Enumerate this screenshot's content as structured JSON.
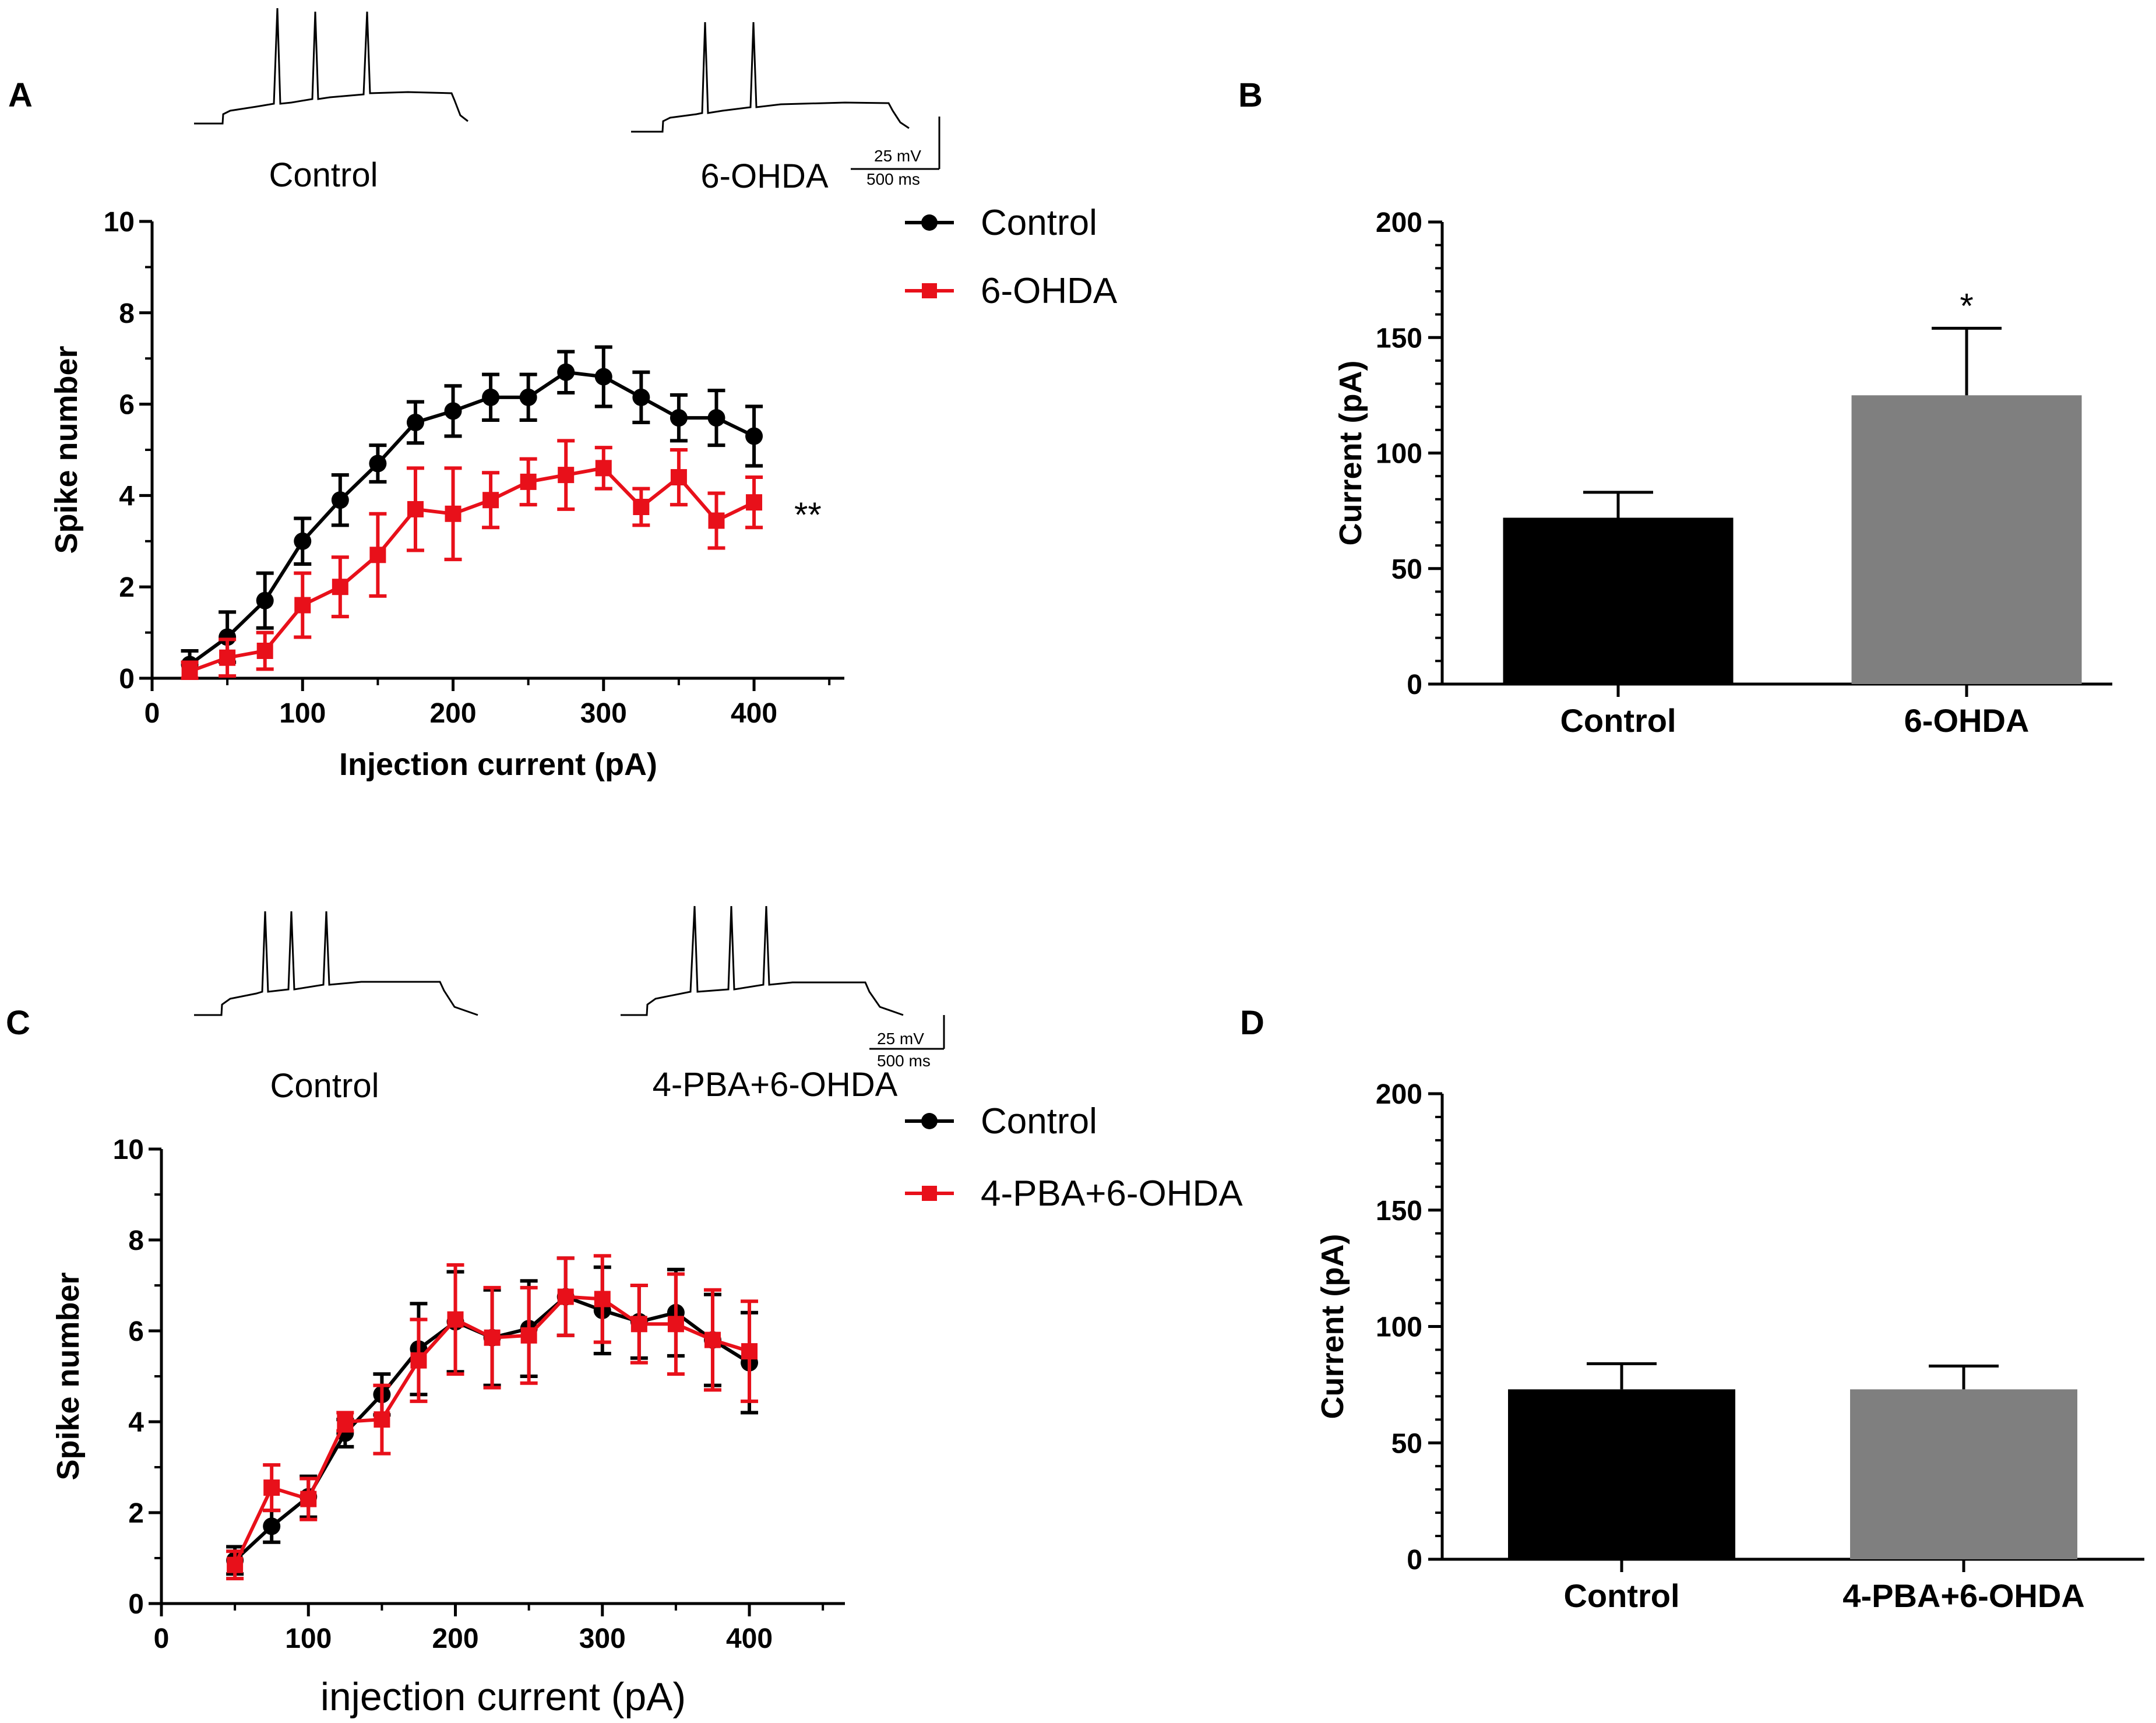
{
  "panels": {
    "A": "A",
    "B": "B",
    "C": "C",
    "D": "D"
  },
  "colors": {
    "control": "#000000",
    "treatment": "#e8101a",
    "bar_control": "#000000",
    "bar_treatment": "#7f7f7f"
  },
  "traces": {
    "A": {
      "left_label": "Control",
      "right_label": "6-OHDA",
      "scale_mv": "25 mV",
      "scale_ms": "500 ms"
    },
    "C": {
      "left_label": "Control",
      "right_label": "4-PBA+6-OHDA",
      "scale_mv": "25 mV",
      "scale_ms": "500 ms"
    }
  },
  "chart_data": [
    {
      "id": "A",
      "type": "line",
      "xlabel": "Injection current (pA)",
      "ylabel": "Spike number",
      "xlim": [
        0,
        460
      ],
      "ylim": [
        0,
        10
      ],
      "xticks": [
        "0",
        "100",
        "200",
        "300",
        "400"
      ],
      "yticks": [
        "0",
        "2",
        "4",
        "6",
        "8",
        "10"
      ],
      "annotation": "**",
      "series": [
        {
          "name": "Control",
          "x": [
            25,
            50,
            75,
            100,
            125,
            150,
            175,
            200,
            225,
            250,
            275,
            300,
            325,
            350,
            375,
            400
          ],
          "values": [
            0.3,
            0.9,
            1.7,
            3.0,
            3.9,
            4.7,
            5.6,
            5.85,
            6.15,
            6.15,
            6.7,
            6.6,
            6.15,
            5.7,
            5.7,
            5.3
          ],
          "err": [
            0.3,
            0.55,
            0.6,
            0.5,
            0.55,
            0.4,
            0.45,
            0.55,
            0.5,
            0.5,
            0.45,
            0.65,
            0.55,
            0.5,
            0.6,
            0.65
          ]
        },
        {
          "name": "6-OHDA",
          "x": [
            25,
            50,
            75,
            100,
            125,
            150,
            175,
            200,
            225,
            250,
            275,
            300,
            325,
            350,
            375,
            400
          ],
          "values": [
            0.15,
            0.45,
            0.6,
            1.6,
            2.0,
            2.7,
            3.7,
            3.6,
            3.9,
            4.3,
            4.45,
            4.6,
            3.75,
            4.4,
            3.45,
            3.85
          ],
          "err": [
            0.2,
            0.4,
            0.4,
            0.7,
            0.65,
            0.9,
            0.9,
            1.0,
            0.6,
            0.5,
            0.75,
            0.45,
            0.4,
            0.6,
            0.6,
            0.55
          ]
        }
      ]
    },
    {
      "id": "B",
      "type": "bar",
      "ylabel": "Current (pA)",
      "ylim": [
        0,
        200
      ],
      "yticks": [
        "0",
        "50",
        "100",
        "150",
        "200"
      ],
      "categories": [
        "Control",
        "6-OHDA"
      ],
      "values": [
        72,
        125
      ],
      "err": [
        11,
        29
      ],
      "annotations": [
        "",
        "*"
      ]
    },
    {
      "id": "C",
      "type": "line",
      "xlabel": "injection current (pA)",
      "ylabel": "Spike number",
      "xlim": [
        0,
        465
      ],
      "ylim": [
        0,
        10
      ],
      "xticks": [
        "0",
        "100",
        "200",
        "300",
        "400"
      ],
      "yticks": [
        "0",
        "2",
        "4",
        "6",
        "8",
        "10"
      ],
      "series": [
        {
          "name": "Control",
          "x": [
            50,
            75,
            100,
            125,
            150,
            175,
            200,
            225,
            250,
            275,
            300,
            325,
            350,
            375,
            400
          ],
          "values": [
            0.95,
            1.7,
            2.35,
            3.75,
            4.6,
            5.6,
            6.2,
            5.85,
            6.05,
            6.75,
            6.45,
            6.2,
            6.4,
            5.8,
            5.3
          ],
          "err": [
            0.3,
            0.35,
            0.45,
            0.3,
            0.45,
            1.0,
            1.1,
            1.05,
            1.05,
            0.85,
            0.95,
            0.8,
            0.95,
            1.0,
            1.1
          ]
        },
        {
          "name": "4-PBA+6-OHDA",
          "x": [
            50,
            75,
            100,
            125,
            150,
            175,
            200,
            225,
            250,
            275,
            300,
            325,
            350,
            375,
            400
          ],
          "values": [
            0.85,
            2.55,
            2.3,
            4.0,
            4.05,
            5.35,
            6.25,
            5.85,
            5.9,
            6.75,
            6.7,
            6.15,
            6.15,
            5.8,
            5.55
          ],
          "err": [
            0.3,
            0.5,
            0.45,
            0.2,
            0.75,
            0.9,
            1.2,
            1.1,
            1.05,
            0.85,
            0.95,
            0.85,
            1.1,
            1.1,
            1.1
          ]
        }
      ]
    },
    {
      "id": "D",
      "type": "bar",
      "ylabel": "Current (pA)",
      "ylim": [
        0,
        200
      ],
      "yticks": [
        "0",
        "50",
        "100",
        "150",
        "200"
      ],
      "categories": [
        "Control",
        "4-PBA+6-OHDA"
      ],
      "values": [
        73,
        73
      ],
      "err": [
        11,
        10
      ],
      "annotations": [
        "",
        ""
      ]
    }
  ]
}
